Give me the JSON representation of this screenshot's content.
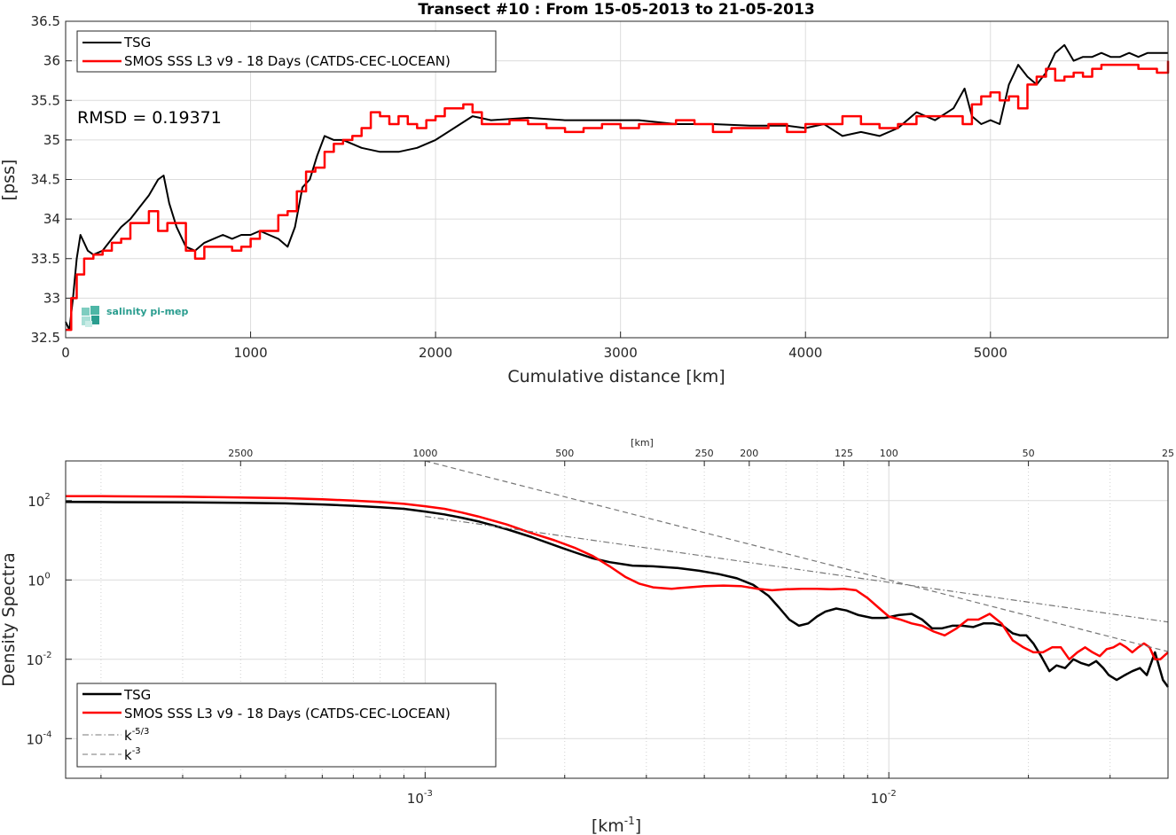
{
  "chart_data": [
    {
      "type": "line",
      "title": "Transect #10 : From 15-05-2013 to 21-05-2013",
      "xlabel": "Cumulative distance [km]",
      "ylabel": "[pss]",
      "xlim": [
        0,
        5960
      ],
      "ylim": [
        32.5,
        36.5
      ],
      "xticks": [
        0,
        1000,
        2000,
        3000,
        4000,
        5000
      ],
      "yticks": [
        32.5,
        33,
        33.5,
        34,
        34.5,
        35,
        35.5,
        36,
        36.5
      ],
      "grid": true,
      "legend_position": "top-left",
      "annotation": "RMSD = 0.19371",
      "logo": "salinity pi-mep",
      "series": [
        {
          "name": "TSG",
          "color": "#000000",
          "x": [
            0,
            20,
            40,
            60,
            80,
            100,
            120,
            150,
            200,
            250,
            300,
            350,
            400,
            450,
            500,
            530,
            560,
            600,
            650,
            700,
            750,
            800,
            850,
            900,
            950,
            1000,
            1050,
            1100,
            1150,
            1200,
            1240,
            1280,
            1320,
            1360,
            1400,
            1450,
            1500,
            1600,
            1700,
            1800,
            1900,
            2000,
            2100,
            2200,
            2300,
            2500,
            2700,
            2900,
            3100,
            3300,
            3500,
            3700,
            3900,
            4000,
            4100,
            4200,
            4300,
            4400,
            4500,
            4600,
            4700,
            4800,
            4860,
            4900,
            4950,
            5000,
            5050,
            5100,
            5150,
            5200,
            5250,
            5300,
            5350,
            5400,
            5450,
            5500,
            5550,
            5600,
            5650,
            5700,
            5750,
            5800,
            5850,
            5900,
            5960
          ],
          "y": [
            32.7,
            32.6,
            33.0,
            33.5,
            33.8,
            33.7,
            33.6,
            33.55,
            33.6,
            33.75,
            33.9,
            34.0,
            34.15,
            34.3,
            34.5,
            34.55,
            34.2,
            33.9,
            33.65,
            33.6,
            33.7,
            33.75,
            33.8,
            33.75,
            33.8,
            33.8,
            33.85,
            33.8,
            33.75,
            33.65,
            33.9,
            34.4,
            34.5,
            34.8,
            35.05,
            35.0,
            35.0,
            34.9,
            34.85,
            34.85,
            34.9,
            35.0,
            35.15,
            35.3,
            35.25,
            35.28,
            35.25,
            35.25,
            35.25,
            35.2,
            35.2,
            35.18,
            35.18,
            35.15,
            35.2,
            35.05,
            35.1,
            35.05,
            35.15,
            35.35,
            35.25,
            35.4,
            35.65,
            35.3,
            35.2,
            35.25,
            35.2,
            35.7,
            35.95,
            35.8,
            35.7,
            35.85,
            36.1,
            36.2,
            36.0,
            36.05,
            36.05,
            36.1,
            36.05,
            36.05,
            36.1,
            36.05,
            36.1,
            36.1,
            36.1
          ]
        },
        {
          "name": "SMOS SSS L3 v9 - 18 Days (CATDS-CEC-LOCEAN)",
          "color": "#ff0000",
          "x": [
            0,
            30,
            60,
            100,
            150,
            200,
            250,
            300,
            350,
            400,
            450,
            500,
            550,
            600,
            650,
            700,
            750,
            800,
            850,
            900,
            950,
            1000,
            1050,
            1100,
            1150,
            1200,
            1250,
            1300,
            1350,
            1400,
            1450,
            1500,
            1550,
            1600,
            1650,
            1700,
            1750,
            1800,
            1850,
            1900,
            1950,
            2000,
            2050,
            2100,
            2150,
            2200,
            2250,
            2300,
            2400,
            2500,
            2600,
            2700,
            2800,
            2900,
            3000,
            3100,
            3200,
            3300,
            3400,
            3500,
            3600,
            3700,
            3800,
            3900,
            4000,
            4100,
            4200,
            4300,
            4400,
            4500,
            4600,
            4700,
            4800,
            4850,
            4900,
            4950,
            5000,
            5050,
            5100,
            5150,
            5200,
            5250,
            5300,
            5350,
            5400,
            5450,
            5500,
            5550,
            5600,
            5650,
            5700,
            5750,
            5800,
            5850,
            5900,
            5960
          ],
          "y": [
            32.6,
            33.0,
            33.3,
            33.5,
            33.55,
            33.6,
            33.7,
            33.75,
            33.95,
            33.95,
            34.1,
            33.85,
            33.95,
            33.95,
            33.6,
            33.5,
            33.65,
            33.65,
            33.65,
            33.6,
            33.65,
            33.75,
            33.85,
            33.85,
            34.05,
            34.1,
            34.35,
            34.6,
            34.65,
            34.85,
            34.95,
            35.0,
            35.05,
            35.15,
            35.35,
            35.3,
            35.2,
            35.3,
            35.2,
            35.15,
            35.25,
            35.3,
            35.4,
            35.4,
            35.45,
            35.35,
            35.2,
            35.2,
            35.25,
            35.2,
            35.15,
            35.1,
            35.15,
            35.2,
            35.15,
            35.2,
            35.2,
            35.25,
            35.2,
            35.1,
            35.15,
            35.15,
            35.2,
            35.1,
            35.2,
            35.2,
            35.3,
            35.2,
            35.15,
            35.2,
            35.3,
            35.3,
            35.3,
            35.2,
            35.45,
            35.55,
            35.6,
            35.5,
            35.55,
            35.4,
            35.7,
            35.8,
            35.9,
            35.75,
            35.8,
            35.85,
            35.8,
            35.9,
            35.95,
            35.95,
            35.95,
            35.95,
            35.9,
            35.9,
            35.85,
            36.0
          ]
        }
      ]
    },
    {
      "type": "line",
      "title": "",
      "xlabel": "[km",
      "xlabel_sup": "-1",
      "xlabel_tail": "]",
      "ylabel": "Density Spectra",
      "xscale": "log",
      "yscale": "log",
      "xlim": [
        0.000167785,
        0.04
      ],
      "ylim": [
        1e-05,
        1000
      ],
      "xticks": [
        {
          "v": 0.001,
          "base": "10",
          "exp": "-3"
        },
        {
          "v": 0.01,
          "base": "10",
          "exp": "-2"
        }
      ],
      "yticks": [
        {
          "v": 0.0001,
          "base": "10",
          "exp": "-4"
        },
        {
          "v": 0.01,
          "base": "10",
          "exp": "-2"
        },
        {
          "v": 1,
          "base": "10",
          "exp": "0"
        },
        {
          "v": 100,
          "base": "10",
          "exp": "2"
        }
      ],
      "top_axis_label": "[km]",
      "top_axis_ticks": [
        2500,
        1000,
        500,
        250,
        200,
        125,
        100,
        50,
        25
      ],
      "grid": true,
      "legend_position": "bottom-left",
      "series": [
        {
          "name": "TSG",
          "color": "#000000",
          "x": [
            0.000167785,
            0.0002,
            0.0003,
            0.0004,
            0.0005,
            0.0006,
            0.0007,
            0.0008,
            0.0009,
            0.001,
            0.0011,
            0.0012,
            0.0013,
            0.0015,
            0.0017,
            0.0019,
            0.0021,
            0.0023,
            0.0025,
            0.0028,
            0.0031,
            0.0035,
            0.0039,
            0.0043,
            0.0047,
            0.0051,
            0.0055,
            0.0058,
            0.0061,
            0.0064,
            0.0067,
            0.007,
            0.0073,
            0.0077,
            0.0081,
            0.0086,
            0.0092,
            0.0098,
            0.0105,
            0.0112,
            0.0118,
            0.0124,
            0.013,
            0.0137,
            0.0144,
            0.0152,
            0.016,
            0.0168,
            0.0176,
            0.0185,
            0.0192,
            0.0198,
            0.0205,
            0.0213,
            0.0222,
            0.023,
            0.024,
            0.025,
            0.026,
            0.027,
            0.028,
            0.029,
            0.0298,
            0.031,
            0.0323,
            0.0335,
            0.0348,
            0.036,
            0.0375,
            0.039,
            0.04
          ],
          "y": [
            93,
            92,
            90,
            88,
            85,
            80,
            74,
            68,
            62,
            53,
            45,
            37,
            30,
            19,
            12,
            7.5,
            5.0,
            3.5,
            2.8,
            2.3,
            2.2,
            2.0,
            1.7,
            1.4,
            1.1,
            0.75,
            0.4,
            0.2,
            0.1,
            0.07,
            0.08,
            0.12,
            0.16,
            0.19,
            0.17,
            0.13,
            0.11,
            0.11,
            0.13,
            0.14,
            0.1,
            0.06,
            0.06,
            0.07,
            0.07,
            0.065,
            0.08,
            0.08,
            0.07,
            0.045,
            0.04,
            0.04,
            0.025,
            0.012,
            0.005,
            0.007,
            0.006,
            0.01,
            0.008,
            0.007,
            0.009,
            0.006,
            0.004,
            0.003,
            0.004,
            0.005,
            0.006,
            0.004,
            0.015,
            0.003,
            0.002
          ]
        },
        {
          "name": "SMOS SSS L3 v9 - 18 Days (CATDS-CEC-LOCEAN)",
          "color": "#ff0000",
          "x": [
            0.000167785,
            0.0002,
            0.0003,
            0.0004,
            0.0005,
            0.0006,
            0.0007,
            0.0008,
            0.0009,
            0.001,
            0.0011,
            0.0012,
            0.0013,
            0.0015,
            0.0017,
            0.0019,
            0.0021,
            0.0023,
            0.0025,
            0.0027,
            0.0029,
            0.0031,
            0.0034,
            0.0037,
            0.004,
            0.0044,
            0.0048,
            0.0052,
            0.0056,
            0.006,
            0.0065,
            0.007,
            0.0075,
            0.008,
            0.0085,
            0.009,
            0.0095,
            0.01,
            0.0106,
            0.0112,
            0.0118,
            0.0125,
            0.0132,
            0.014,
            0.0148,
            0.0156,
            0.0165,
            0.0175,
            0.0185,
            0.0195,
            0.0205,
            0.0215,
            0.0225,
            0.0235,
            0.0245,
            0.0255,
            0.0265,
            0.0275,
            0.0285,
            0.0295,
            0.0305,
            0.0315,
            0.0325,
            0.0335,
            0.0345,
            0.0355,
            0.0365,
            0.0375,
            0.0385,
            0.04
          ],
          "y": [
            130,
            129,
            125,
            120,
            115,
            108,
            100,
            92,
            83,
            72,
            62,
            50,
            40,
            25,
            15,
            10,
            6.5,
            4.0,
            2.2,
            1.2,
            0.8,
            0.65,
            0.6,
            0.65,
            0.7,
            0.72,
            0.7,
            0.6,
            0.55,
            0.58,
            0.6,
            0.6,
            0.58,
            0.6,
            0.55,
            0.35,
            0.2,
            0.12,
            0.1,
            0.08,
            0.07,
            0.05,
            0.04,
            0.06,
            0.1,
            0.1,
            0.14,
            0.08,
            0.03,
            0.02,
            0.015,
            0.015,
            0.02,
            0.02,
            0.01,
            0.015,
            0.02,
            0.015,
            0.012,
            0.018,
            0.02,
            0.025,
            0.02,
            0.015,
            0.02,
            0.025,
            0.02,
            0.01,
            0.01,
            0.015
          ]
        },
        {
          "name": "k-5/3",
          "label_base": "k",
          "label_sup": "-5/3",
          "color": "#777777",
          "dash": "7 3 1.5 3",
          "x": [
            0.001,
            0.04
          ],
          "y": [
            40,
            0.087
          ]
        },
        {
          "name": "k-3",
          "label_base": "k",
          "label_sup": "-3",
          "color": "#777777",
          "dash": "6 4",
          "x": [
            0.001,
            0.04
          ],
          "y": [
            1000,
            0.0156
          ]
        }
      ]
    }
  ]
}
